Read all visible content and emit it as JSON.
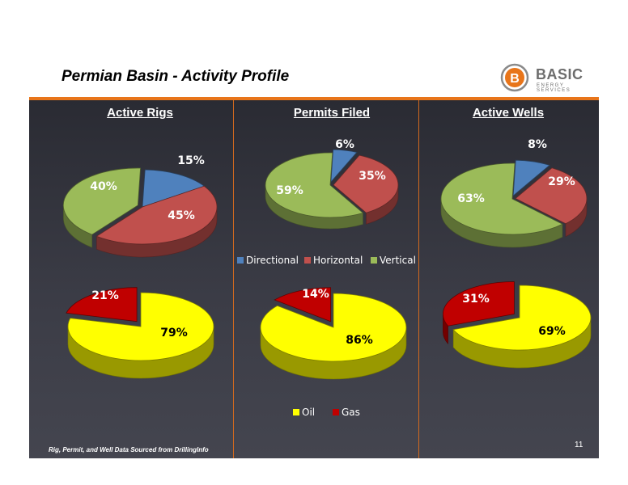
{
  "header": {
    "title": "Permian Basin - Activity Profile",
    "logo_text": "BASIC",
    "logo_subtext": "ENERGY SERVICES",
    "logo_letter": "B"
  },
  "columns": [
    {
      "heading": "Active Rigs"
    },
    {
      "heading": "Permits Filed"
    },
    {
      "heading": "Active Wells"
    }
  ],
  "footer": {
    "note": "Rig, Permit, and Well Data Sourced from  DrillingInfo",
    "page_number": "11"
  },
  "colors": {
    "directional": "#4f81bd",
    "horizontal": "#c0504d",
    "vertical": "#9bbb59",
    "oil": "#ffff00",
    "gas": "#c00000",
    "accent": "#e8751a"
  },
  "chart_data": [
    {
      "type": "pie",
      "name": "Active Rigs - well type",
      "categories": [
        "Directional",
        "Horizontal",
        "Vertical"
      ],
      "values": [
        15,
        45,
        40
      ],
      "labels": [
        "15%",
        "45%",
        "40%"
      ]
    },
    {
      "type": "pie",
      "name": "Permits Filed - well type",
      "categories": [
        "Directional",
        "Horizontal",
        "Vertical"
      ],
      "values": [
        6,
        35,
        59
      ],
      "labels": [
        "6%",
        "35%",
        "59%"
      ]
    },
    {
      "type": "pie",
      "name": "Active Wells - well type",
      "categories": [
        "Directional",
        "Horizontal",
        "Vertical"
      ],
      "values": [
        8,
        29,
        63
      ],
      "labels": [
        "8%",
        "29%",
        "63%"
      ]
    },
    {
      "type": "pie",
      "name": "Active Rigs - product",
      "categories": [
        "Oil",
        "Gas"
      ],
      "values": [
        79,
        21
      ],
      "labels": [
        "79%",
        "21%"
      ]
    },
    {
      "type": "pie",
      "name": "Permits Filed - product",
      "categories": [
        "Oil",
        "Gas"
      ],
      "values": [
        86,
        14
      ],
      "labels": [
        "86%",
        "14%"
      ]
    },
    {
      "type": "pie",
      "name": "Active Wells - product",
      "categories": [
        "Oil",
        "Gas"
      ],
      "values": [
        69,
        31
      ],
      "labels": [
        "69%",
        "31%"
      ]
    }
  ],
  "legends": {
    "type": [
      "Directional",
      "Horizontal",
      "Vertical"
    ],
    "product": [
      "Oil",
      "Gas"
    ]
  }
}
